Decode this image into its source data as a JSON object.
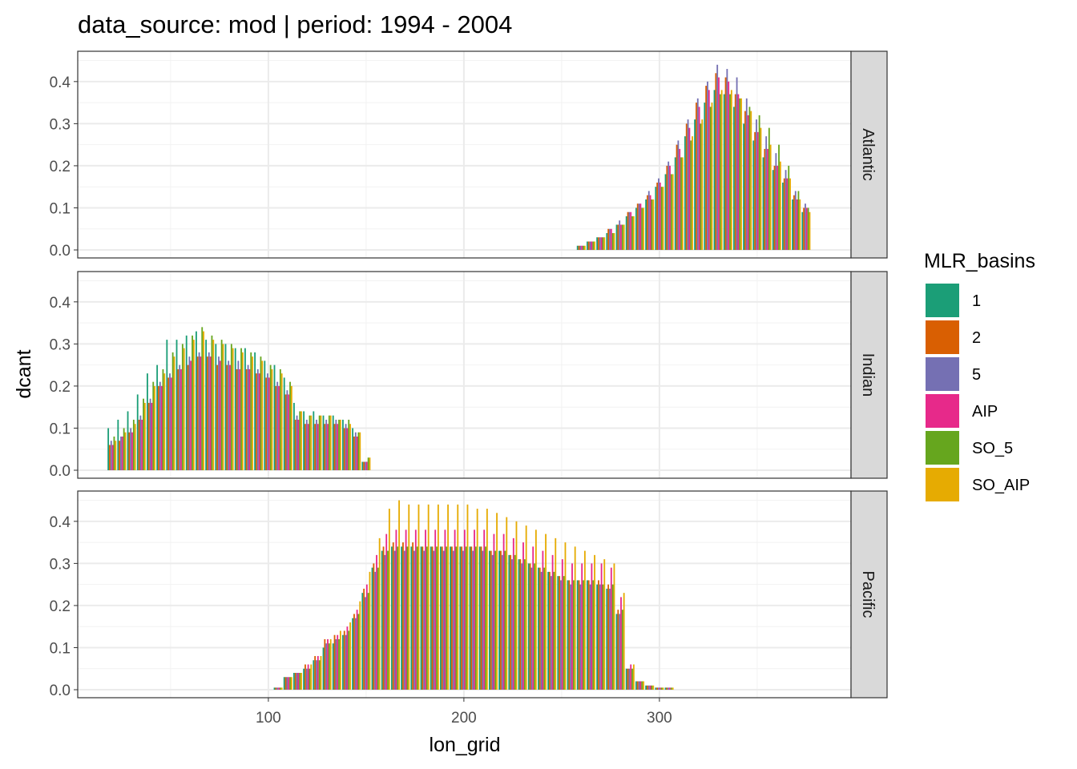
{
  "chart_data": {
    "type": "bar",
    "title": "data_source: mod | period: 1994 - 2004",
    "xlabel": "lon_grid",
    "ylabel": "dcant",
    "legend_title": "MLR_basins",
    "xlim": [
      2.5,
      398
    ],
    "xticks": [
      100,
      200,
      300
    ],
    "xminorticks": [
      50,
      150,
      250,
      350
    ],
    "ylim": [
      -0.019,
      0.472
    ],
    "yticks": [
      {
        "value": 0,
        "label": "0.0"
      },
      0.1,
      0.2,
      0.3,
      0.4
    ],
    "yminorticks": [
      0.05,
      0.15,
      0.25,
      0.35,
      0.45
    ],
    "grid": true,
    "legend": "right",
    "series": [
      {
        "name": "1",
        "color": "#1b9e77"
      },
      {
        "name": "2",
        "color": "#d95f02"
      },
      {
        "name": "5",
        "color": "#7570b3"
      },
      {
        "name": "AIP",
        "color": "#e7298a"
      },
      {
        "name": "SO_5",
        "color": "#66a61e"
      },
      {
        "name": "SO_AIP",
        "color": "#e6ab02"
      }
    ],
    "facets": [
      {
        "label": "Atlantic",
        "x": [
          260,
          265,
          270,
          275,
          280,
          285,
          290,
          295,
          300,
          305,
          310,
          315,
          320,
          325,
          330,
          335,
          340,
          345,
          350,
          355,
          360,
          365,
          370,
          375
        ],
        "values": [
          [
            0.01,
            0.02,
            0.03,
            0.04,
            0.06,
            0.08,
            0.1,
            0.12,
            0.15,
            0.18,
            0.22,
            0.27,
            0.31,
            0.35,
            0.38,
            0.37,
            0.34,
            0.3,
            0.26,
            0.22,
            0.19,
            0.16,
            0.12,
            0.09
          ],
          [
            0.01,
            0.02,
            0.03,
            0.05,
            0.06,
            0.09,
            0.11,
            0.13,
            0.16,
            0.2,
            0.25,
            0.3,
            0.35,
            0.39,
            0.42,
            0.41,
            0.37,
            0.33,
            0.28,
            0.24,
            0.2,
            0.17,
            0.13,
            0.1
          ],
          [
            0.01,
            0.02,
            0.03,
            0.05,
            0.07,
            0.09,
            0.11,
            0.14,
            0.17,
            0.21,
            0.26,
            0.31,
            0.36,
            0.4,
            0.44,
            0.43,
            0.41,
            0.36,
            0.31,
            0.27,
            0.23,
            0.19,
            0.14,
            0.11
          ],
          [
            0.01,
            0.02,
            0.03,
            0.05,
            0.06,
            0.09,
            0.11,
            0.13,
            0.16,
            0.2,
            0.24,
            0.29,
            0.34,
            0.38,
            0.41,
            0.4,
            0.37,
            0.32,
            0.28,
            0.24,
            0.2,
            0.17,
            0.12,
            0.1
          ],
          [
            0.01,
            0.02,
            0.03,
            0.04,
            0.06,
            0.08,
            0.1,
            0.12,
            0.15,
            0.18,
            0.22,
            0.26,
            0.3,
            0.34,
            0.37,
            0.37,
            0.36,
            0.34,
            0.32,
            0.29,
            0.25,
            0.2,
            0.14,
            0.1
          ],
          [
            0.01,
            0.02,
            0.03,
            0.04,
            0.06,
            0.08,
            0.1,
            0.12,
            0.15,
            0.18,
            0.22,
            0.27,
            0.31,
            0.35,
            0.38,
            0.38,
            0.36,
            0.33,
            0.29,
            0.25,
            0.21,
            0.17,
            0.12,
            0.09
          ]
        ]
      },
      {
        "label": "Indian",
        "x": [
          20,
          25,
          30,
          35,
          40,
          45,
          50,
          55,
          60,
          65,
          70,
          75,
          80,
          85,
          90,
          95,
          100,
          105,
          110,
          115,
          120,
          125,
          130,
          135,
          140,
          145,
          150
        ],
        "values": [
          [
            0.1,
            0.12,
            0.14,
            0.18,
            0.23,
            0.25,
            0.31,
            0.31,
            0.32,
            0.33,
            0.31,
            0.3,
            0.3,
            0.29,
            0.29,
            0.28,
            0.26,
            0.25,
            0.22,
            0.16,
            0.14,
            0.14,
            0.13,
            0.13,
            0.12,
            0.1,
            0.02
          ],
          [
            0.06,
            0.07,
            0.09,
            0.12,
            0.16,
            0.2,
            0.22,
            0.24,
            0.25,
            0.27,
            0.27,
            0.25,
            0.25,
            0.24,
            0.24,
            0.23,
            0.22,
            0.2,
            0.18,
            0.12,
            0.11,
            0.11,
            0.11,
            0.11,
            0.1,
            0.08,
            0.02
          ],
          [
            0.07,
            0.08,
            0.1,
            0.13,
            0.17,
            0.21,
            0.23,
            0.25,
            0.27,
            0.28,
            0.28,
            0.27,
            0.26,
            0.26,
            0.25,
            0.24,
            0.23,
            0.21,
            0.19,
            0.13,
            0.12,
            0.12,
            0.12,
            0.12,
            0.11,
            0.09,
            0.02
          ],
          [
            0.06,
            0.08,
            0.09,
            0.12,
            0.16,
            0.2,
            0.22,
            0.24,
            0.26,
            0.27,
            0.27,
            0.26,
            0.25,
            0.24,
            0.24,
            0.23,
            0.22,
            0.2,
            0.18,
            0.12,
            0.11,
            0.11,
            0.11,
            0.11,
            0.1,
            0.08,
            0.02
          ],
          [
            0.08,
            0.1,
            0.12,
            0.17,
            0.21,
            0.24,
            0.28,
            0.3,
            0.32,
            0.34,
            0.32,
            0.31,
            0.3,
            0.29,
            0.28,
            0.27,
            0.25,
            0.24,
            0.21,
            0.14,
            0.13,
            0.13,
            0.13,
            0.12,
            0.12,
            0.09,
            0.03
          ],
          [
            0.07,
            0.09,
            0.11,
            0.16,
            0.2,
            0.23,
            0.27,
            0.29,
            0.31,
            0.33,
            0.31,
            0.3,
            0.29,
            0.28,
            0.27,
            0.26,
            0.24,
            0.23,
            0.2,
            0.14,
            0.13,
            0.13,
            0.13,
            0.12,
            0.11,
            0.09,
            0.03
          ]
        ]
      },
      {
        "label": "Pacific",
        "x": [
          105,
          110,
          115,
          120,
          125,
          130,
          135,
          140,
          145,
          150,
          155,
          160,
          165,
          170,
          175,
          180,
          185,
          190,
          195,
          200,
          205,
          210,
          215,
          220,
          225,
          230,
          235,
          240,
          245,
          250,
          255,
          260,
          265,
          270,
          275,
          280,
          285,
          290,
          295,
          300,
          305
        ],
        "values": [
          [
            0.005,
            0.03,
            0.04,
            0.05,
            0.07,
            0.1,
            0.11,
            0.13,
            0.17,
            0.23,
            0.29,
            0.33,
            0.34,
            0.34,
            0.34,
            0.34,
            0.34,
            0.34,
            0.34,
            0.34,
            0.34,
            0.34,
            0.33,
            0.33,
            0.32,
            0.31,
            0.3,
            0.29,
            0.28,
            0.27,
            0.26,
            0.26,
            0.26,
            0.25,
            0.24,
            0.18,
            0.05,
            0.02,
            0.01,
            0.005,
            0.005
          ],
          [
            0.005,
            0.03,
            0.04,
            0.06,
            0.08,
            0.12,
            0.13,
            0.14,
            0.18,
            0.24,
            0.3,
            0.34,
            0.35,
            0.35,
            0.35,
            0.34,
            0.34,
            0.34,
            0.34,
            0.34,
            0.34,
            0.34,
            0.33,
            0.33,
            0.32,
            0.31,
            0.3,
            0.29,
            0.28,
            0.27,
            0.26,
            0.26,
            0.26,
            0.26,
            0.25,
            0.19,
            0.05,
            0.02,
            0.01,
            0.005,
            0.005
          ],
          [
            0.005,
            0.03,
            0.04,
            0.05,
            0.07,
            0.11,
            0.12,
            0.13,
            0.17,
            0.22,
            0.28,
            0.32,
            0.33,
            0.33,
            0.33,
            0.33,
            0.33,
            0.33,
            0.33,
            0.33,
            0.33,
            0.33,
            0.32,
            0.32,
            0.31,
            0.3,
            0.29,
            0.28,
            0.27,
            0.26,
            0.25,
            0.25,
            0.25,
            0.25,
            0.24,
            0.18,
            0.05,
            0.02,
            0.01,
            0.005,
            0.005
          ],
          [
            0.005,
            0.03,
            0.04,
            0.06,
            0.08,
            0.12,
            0.13,
            0.15,
            0.19,
            0.25,
            0.32,
            0.37,
            0.38,
            0.38,
            0.38,
            0.38,
            0.38,
            0.38,
            0.38,
            0.38,
            0.38,
            0.38,
            0.37,
            0.37,
            0.36,
            0.35,
            0.34,
            0.33,
            0.32,
            0.31,
            0.3,
            0.3,
            0.3,
            0.3,
            0.29,
            0.22,
            0.06,
            0.02,
            0.01,
            0.005,
            0.005
          ],
          [
            0.005,
            0.03,
            0.04,
            0.05,
            0.07,
            0.11,
            0.12,
            0.14,
            0.18,
            0.23,
            0.29,
            0.33,
            0.34,
            0.34,
            0.34,
            0.34,
            0.34,
            0.34,
            0.34,
            0.34,
            0.34,
            0.34,
            0.33,
            0.33,
            0.32,
            0.31,
            0.3,
            0.29,
            0.28,
            0.27,
            0.26,
            0.26,
            0.26,
            0.25,
            0.25,
            0.19,
            0.05,
            0.02,
            0.01,
            0.005,
            0.005
          ],
          [
            0.005,
            0.03,
            0.04,
            0.06,
            0.08,
            0.12,
            0.14,
            0.16,
            0.21,
            0.28,
            0.36,
            0.43,
            0.45,
            0.44,
            0.44,
            0.44,
            0.44,
            0.44,
            0.44,
            0.44,
            0.43,
            0.43,
            0.42,
            0.41,
            0.4,
            0.39,
            0.38,
            0.37,
            0.36,
            0.35,
            0.34,
            0.33,
            0.32,
            0.31,
            0.3,
            0.23,
            0.06,
            0.02,
            0.01,
            0.005,
            0.005
          ]
        ]
      }
    ]
  }
}
